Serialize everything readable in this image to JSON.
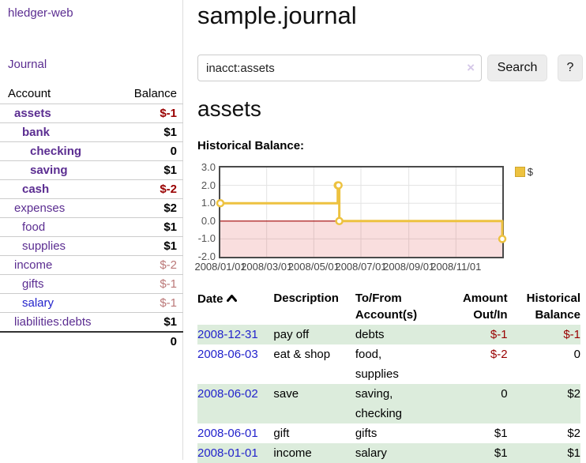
{
  "app": {
    "brand": "hledger-web",
    "nav_journal": "Journal"
  },
  "colors": {
    "link_purple": "#5b2d91",
    "link_blue": "#2323cc",
    "negative_dark": "#990000",
    "negative_light": "#bb7878",
    "stripe_green": "#dcecdc",
    "series_gold": "#edc240",
    "zero_line_red": "#a00000"
  },
  "sidebar": {
    "header": {
      "account": "Account",
      "balance": "Balance"
    },
    "accounts": [
      {
        "name": "assets",
        "indent": 1,
        "matched": true,
        "balance": "$-1",
        "neg": "dark"
      },
      {
        "name": "bank",
        "indent": 2,
        "matched": true,
        "balance": "$1",
        "neg": null
      },
      {
        "name": "checking",
        "indent": 3,
        "matched": true,
        "balance": "0",
        "neg": null
      },
      {
        "name": "saving",
        "indent": 3,
        "matched": true,
        "balance": "$1",
        "neg": null
      },
      {
        "name": "cash",
        "indent": 2,
        "matched": true,
        "balance": "$-2",
        "neg": "dark"
      },
      {
        "name": "expenses",
        "indent": 1,
        "matched": false,
        "balance": "$2",
        "neg": null
      },
      {
        "name": "food",
        "indent": 2,
        "matched": false,
        "balance": "$1",
        "neg": null
      },
      {
        "name": "supplies",
        "indent": 2,
        "matched": false,
        "balance": "$1",
        "neg": null
      },
      {
        "name": "income",
        "indent": 1,
        "matched": false,
        "balance": "$-2",
        "neg": "light"
      },
      {
        "name": "gifts",
        "indent": 2,
        "matched": false,
        "balance": "$-1",
        "neg": "light"
      },
      {
        "name": "salary",
        "indent": 2,
        "matched": false,
        "balance": "$-1",
        "neg": "light",
        "blue": true
      },
      {
        "name": "liabilities:debts",
        "indent": 1,
        "matched": false,
        "balance": "$1",
        "neg": null
      }
    ],
    "total": "0"
  },
  "main": {
    "title": "sample.journal",
    "search": {
      "value": "inacct:assets",
      "clear_icon": "×",
      "button": "Search",
      "help_button": "?"
    },
    "account_heading": "assets",
    "chart_label": "Historical Balance:"
  },
  "chart_data": {
    "type": "line",
    "title": "Historical Balance",
    "steps": true,
    "ylim": [
      -2,
      3
    ],
    "x_range_days": [
      0,
      365
    ],
    "grid": true,
    "legend_position": "top-right",
    "y_ticks": [
      {
        "value": 3,
        "label": "3.0"
      },
      {
        "value": 2,
        "label": "2.0"
      },
      {
        "value": 1,
        "label": "1.0"
      },
      {
        "value": 0,
        "label": "0.0"
      },
      {
        "value": -1,
        "label": "-1.0"
      },
      {
        "value": -2,
        "label": "-2.0"
      }
    ],
    "x_ticks": [
      {
        "day": 0,
        "label": "2008/01/01"
      },
      {
        "day": 60,
        "label": "2008/03/01"
      },
      {
        "day": 121,
        "label": "2008/05/01"
      },
      {
        "day": 182,
        "label": "2008/07/01"
      },
      {
        "day": 244,
        "label": "2008/09/01"
      },
      {
        "day": 305,
        "label": "2008/11/01"
      }
    ],
    "series": [
      {
        "name": "$",
        "color": "#edc240",
        "points": [
          {
            "date": "2008-01-01",
            "day": 0,
            "value": 1
          },
          {
            "date": "2008-06-01",
            "day": 152,
            "value": 2
          },
          {
            "date": "2008-06-02",
            "day": 153,
            "value": 2
          },
          {
            "date": "2008-06-03",
            "day": 154,
            "value": 0
          },
          {
            "date": "2008-12-31",
            "day": 365,
            "value": -1
          }
        ]
      }
    ],
    "negative_region": {
      "below": 0
    }
  },
  "register": {
    "columns": [
      {
        "l1": "Date",
        "l2": "",
        "align": "left",
        "sortable": true
      },
      {
        "l1": "Description",
        "l2": "",
        "align": "left"
      },
      {
        "l1": "To/From",
        "l2": "Account(s)",
        "align": "left"
      },
      {
        "l1": "Amount",
        "l2": "Out/In",
        "align": "right"
      },
      {
        "l1": "Historical",
        "l2": "Balance",
        "align": "right"
      }
    ],
    "rows": [
      {
        "date": "2008-12-31",
        "desc": "pay off",
        "accts": "debts",
        "amount": "$-1",
        "amount_neg": true,
        "balance": "$-1",
        "balance_neg": true
      },
      {
        "date": "2008-06-03",
        "desc": "eat & shop",
        "accts": "food, supplies",
        "amount": "$-2",
        "amount_neg": true,
        "balance": "0",
        "balance_neg": false
      },
      {
        "date": "2008-06-02",
        "desc": "save",
        "accts": "saving, checking",
        "amount": "0",
        "amount_neg": false,
        "balance": "$2",
        "balance_neg": false
      },
      {
        "date": "2008-06-01",
        "desc": "gift",
        "accts": "gifts",
        "amount": "$1",
        "amount_neg": false,
        "balance": "$2",
        "balance_neg": false
      },
      {
        "date": "2008-01-01",
        "desc": "income",
        "accts": "salary",
        "amount": "$1",
        "amount_neg": false,
        "balance": "$1",
        "balance_neg": false
      }
    ]
  }
}
